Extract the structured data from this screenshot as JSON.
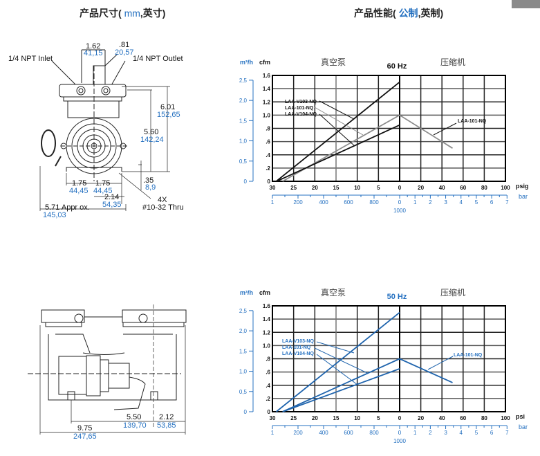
{
  "corner_tab_color": "#8a8a8a",
  "dimensions_title": {
    "prefix": "产品尺寸(",
    "unit_mm": "mm",
    "suffix": ",英寸)"
  },
  "performance_title": {
    "prefix": "产品性能(",
    "metric": "公制",
    "suffix": ",英制)"
  },
  "top_drawing": {
    "inlet_label": "1/4 NPT Inlet",
    "outlet_label": "1/4 NPT Outlet",
    "dims": {
      "d162": {
        "in": "1.62",
        "mm": "41,15"
      },
      "d081": {
        "in": ".81",
        "mm": "20,57"
      },
      "d601": {
        "in": "6.01",
        "mm": "152,65"
      },
      "d560": {
        "in": "5.60",
        "mm": "142,24"
      },
      "d035": {
        "in": ".35",
        "mm": "8,9"
      },
      "d175a": {
        "in": "1.75",
        "mm": "44,45"
      },
      "d175b": {
        "in": "1.75",
        "mm": "44,45"
      },
      "d214": {
        "in": "2.14",
        "mm": "54,35"
      },
      "d571": {
        "in": "5.71 Appr ox.",
        "mm": "145,03"
      }
    },
    "holes_count": "4X",
    "holes_spec": "#10-32 Thru"
  },
  "bottom_drawing": {
    "dims": {
      "d550": {
        "in": "5.50",
        "mm": "139,70"
      },
      "d212": {
        "in": "2.12",
        "mm": "53,85"
      },
      "d975": {
        "in": "9.75",
        "mm": "247,65"
      }
    }
  },
  "chart_data": [
    {
      "type": "line",
      "title": "60 Hz",
      "vacuum_label": "真空泵",
      "pressure_label": "压缩机",
      "y_label_left": "m³/h",
      "y_label": "cfm",
      "x_label": "psig",
      "x2_label": "bar",
      "color": "#111111",
      "highlight_color": "#8c8c8c",
      "ylim": [
        0,
        1.6
      ],
      "yticks": [
        "0",
        ".2",
        ".4",
        ".6",
        ".8",
        "1.0",
        "1.2",
        "1.4",
        "1.6"
      ],
      "m3h_ticks": [
        "0",
        "0,5",
        "1,0",
        "1,5",
        "2,0",
        "2,5"
      ],
      "vacuum_ticks": [
        "30",
        "25",
        "20",
        "15",
        "10",
        "5",
        "0"
      ],
      "pressure_ticks": [
        "20",
        "40",
        "60",
        "80",
        "100"
      ],
      "mbar_ticks": [
        "1",
        "200",
        "400",
        "600",
        "800",
        "0"
      ],
      "mbar_end": "1000",
      "bar_ticks": [
        "1",
        "2",
        "3",
        "4",
        "5",
        "6",
        "7"
      ],
      "grid": true,
      "series": [
        {
          "name": "LAA-V103-NQ",
          "points": [
            {
              "vacuum_inHg": 29.1,
              "cfm": 0
            },
            {
              "vacuum_inHg": 0,
              "cfm": 1.5
            }
          ]
        },
        {
          "name": "LAA-101-NQ",
          "points": [
            {
              "vacuum_inHg": 27.6,
              "cfm": 0
            },
            {
              "vacuum_inHg": 0,
              "cfm": 1.0
            },
            {
              "pressure_psig": 50,
              "cfm": 0.5
            }
          ]
        },
        {
          "name": "LAA-V104-NQ",
          "points": [
            {
              "vacuum_inHg": 29.0,
              "cfm": 0
            },
            {
              "vacuum_inHg": 0,
              "cfm": 0.85
            }
          ]
        }
      ],
      "right_label": "LAA-101-NQ"
    },
    {
      "type": "line",
      "title": "50 Hz",
      "vacuum_label": "真空泵",
      "pressure_label": "压缩机",
      "y_label_left": "m³/h",
      "y_label": "cfm",
      "x_label": "psi",
      "x2_label": "bar",
      "color": "#1f64ad",
      "highlight_color": "#1f64ad",
      "ylim": [
        0,
        1.6
      ],
      "yticks": [
        "0",
        ".2",
        ".4",
        ".6",
        ".8",
        "1.0",
        "1.2",
        "1.4",
        "1.6"
      ],
      "m3h_ticks": [
        "0",
        "0,5",
        "1,0",
        "1,5",
        "2,0",
        "2,5"
      ],
      "vacuum_ticks": [
        "30",
        "25",
        "20",
        "15",
        "10",
        "5",
        "0"
      ],
      "pressure_ticks": [
        "20",
        "40",
        "60",
        "80",
        "100"
      ],
      "mbar_ticks": [
        "1",
        "200",
        "400",
        "600",
        "800",
        "0"
      ],
      "mbar_end": "1000",
      "bar_ticks": [
        "1",
        "2",
        "3",
        "4",
        "5",
        "6",
        "7"
      ],
      "grid": true,
      "series": [
        {
          "name": "LAA-V103-NQ",
          "points": [
            {
              "vacuum_inHg": 29.1,
              "cfm": 0
            },
            {
              "vacuum_inHg": 0,
              "cfm": 1.5
            }
          ]
        },
        {
          "name": "LAA-101-NQ",
          "points": [
            {
              "vacuum_inHg": 27.6,
              "cfm": 0
            },
            {
              "vacuum_inHg": 0,
              "cfm": 0.8
            },
            {
              "pressure_psig": 50,
              "cfm": 0.44
            }
          ]
        },
        {
          "name": "LAA-V104-NQ",
          "points": [
            {
              "vacuum_inHg": 27.6,
              "cfm": 0
            },
            {
              "vacuum_inHg": 0,
              "cfm": 0.65
            }
          ]
        }
      ],
      "right_label": "LAA-101-NQ"
    }
  ]
}
